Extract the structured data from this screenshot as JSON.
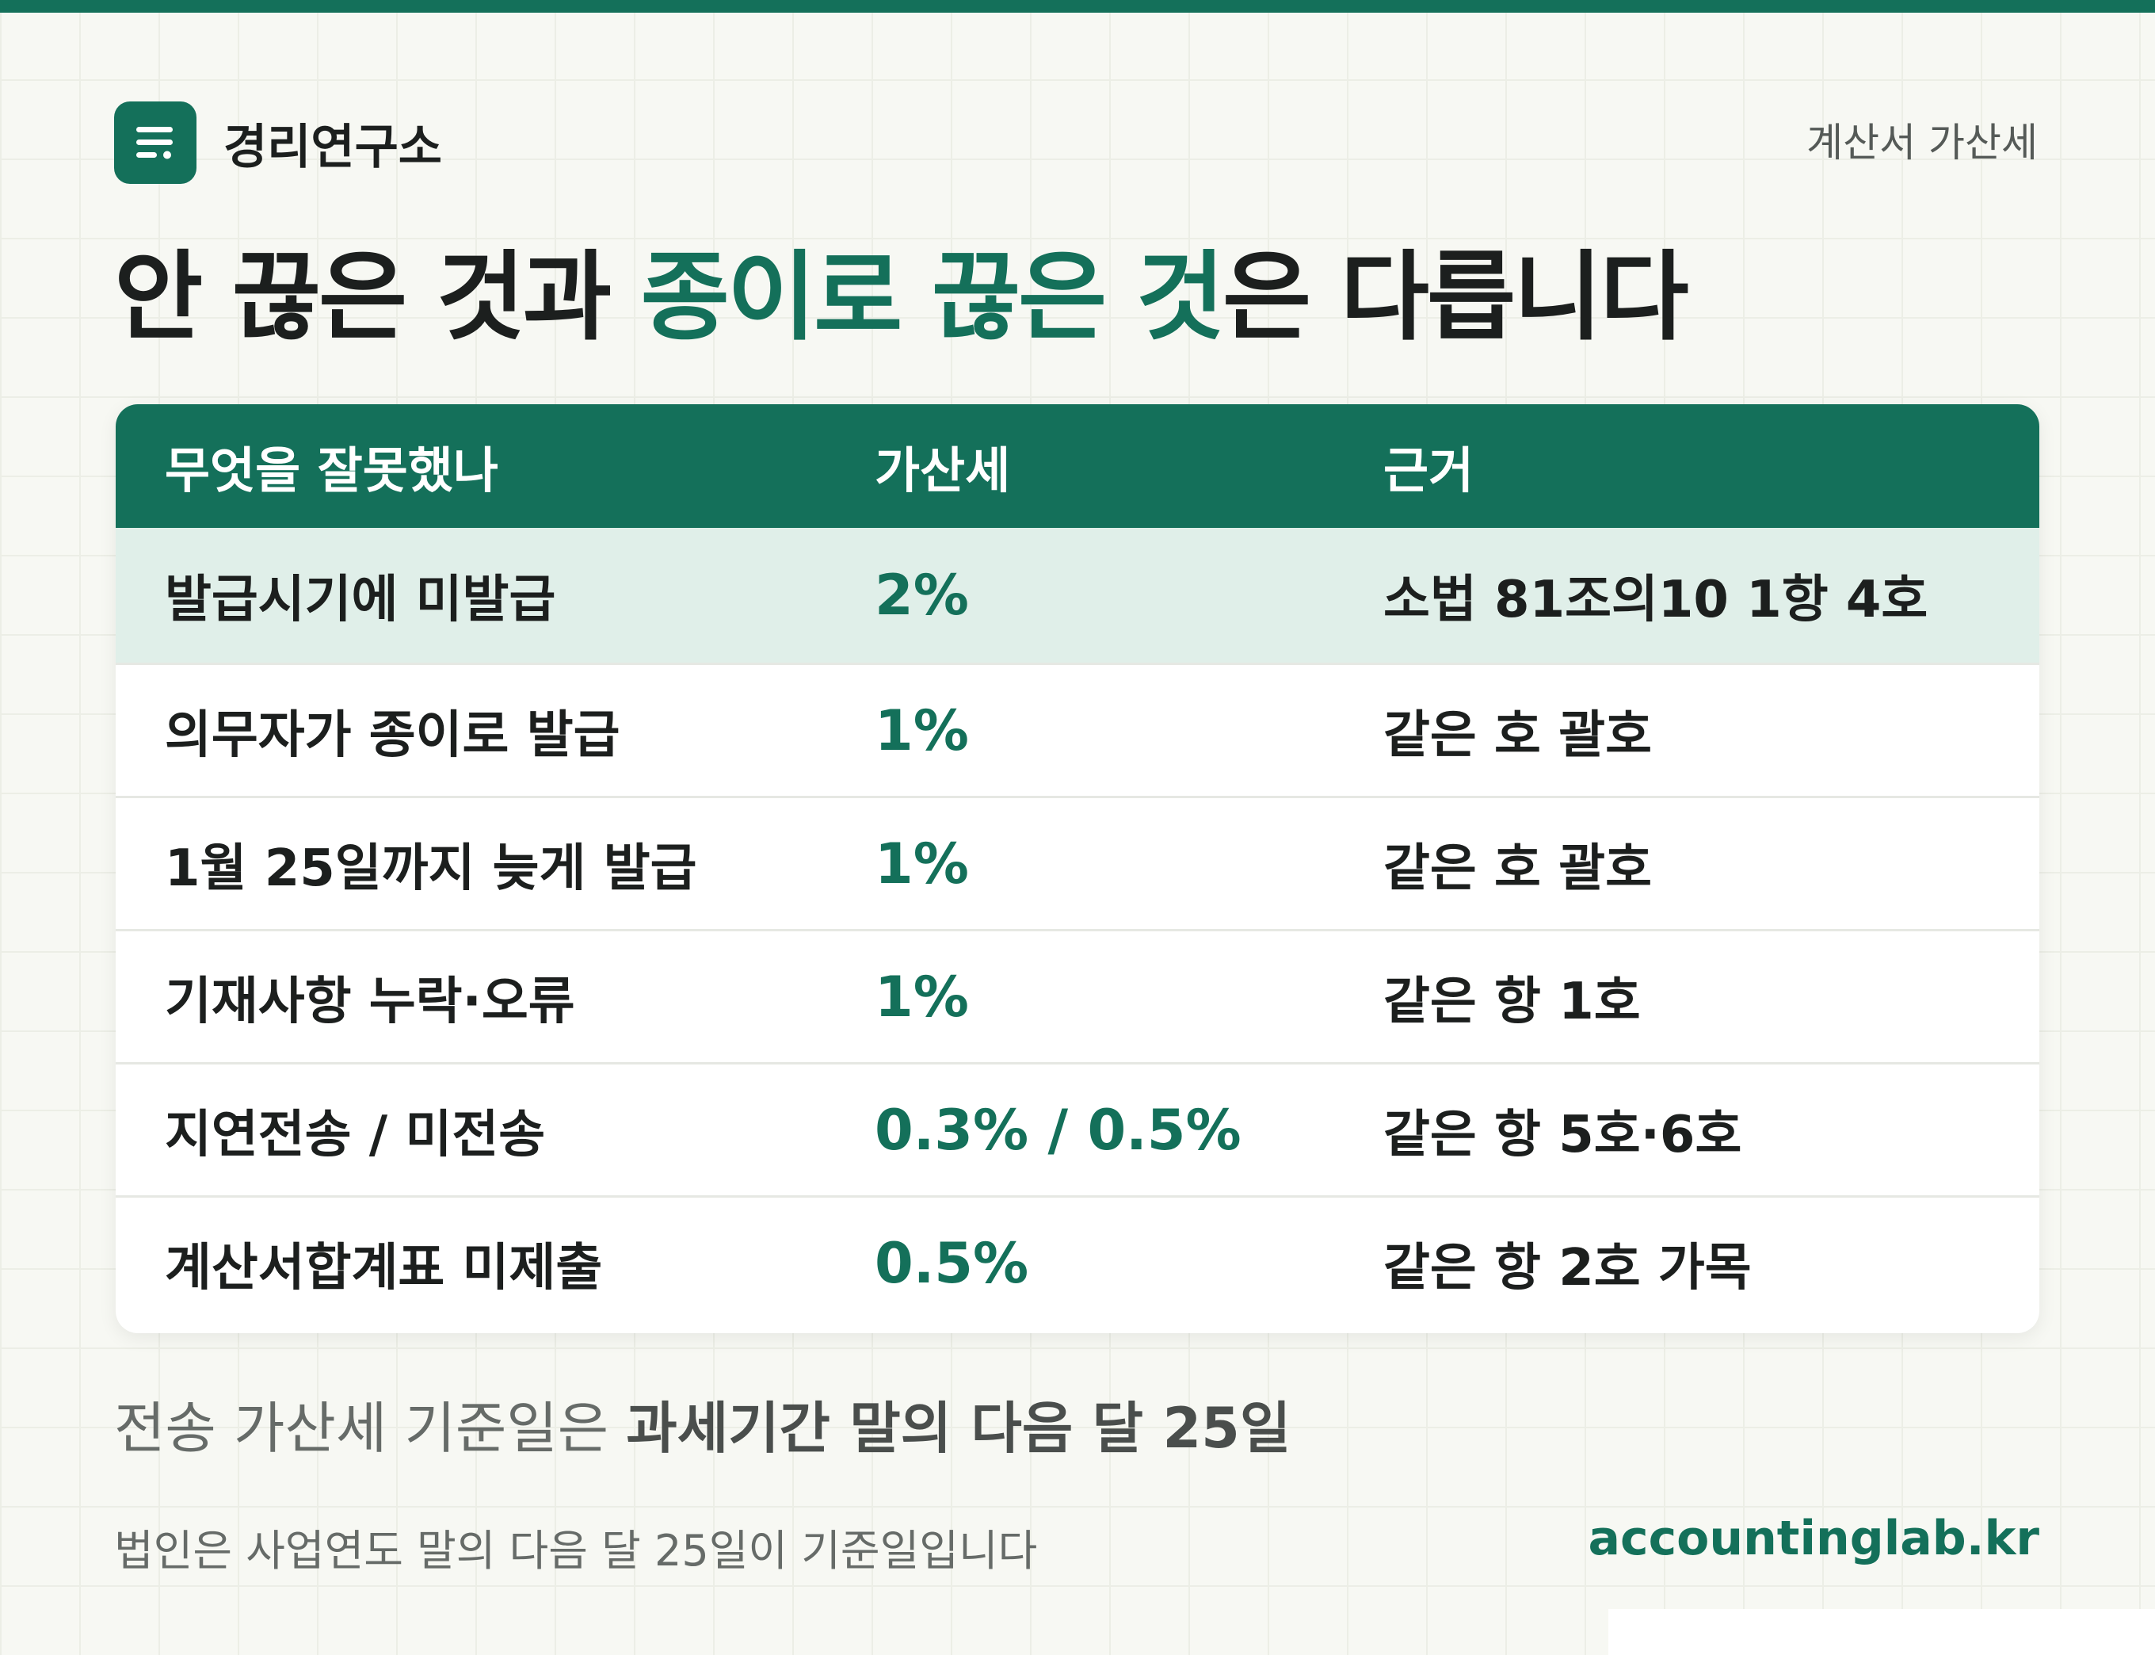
{
  "colors": {
    "accent": "#14705a",
    "background": "#f7f8f3",
    "highlight_row": "#e0efe9",
    "text": "#1c1f1e",
    "muted": "#666b68"
  },
  "brand": {
    "name": "경리연구소",
    "logo_icon": "document-lines-icon"
  },
  "doc_tag": "계산서 가산세",
  "headline": {
    "part1": "안 끊은 것과 ",
    "accent": "종이로 끊은 것",
    "part2": "은 다릅니다"
  },
  "table": {
    "headers": [
      "무엇을 잘못했나",
      "가산세",
      "근거"
    ],
    "rows": [
      {
        "issue": "발급시기에 미발급",
        "rate": "2%",
        "basis": "소법 81조의10 1항 4호"
      },
      {
        "issue": "의무자가 종이로 발급",
        "rate": "1%",
        "basis": "같은 호 괄호"
      },
      {
        "issue": "1월 25일까지 늦게 발급",
        "rate": "1%",
        "basis": "같은 호 괄호"
      },
      {
        "issue": "기재사항 누락·오류",
        "rate": "1%",
        "basis": "같은 항 1호"
      },
      {
        "issue": "지연전송 / 미전송",
        "rate": "0.3% / 0.5%",
        "basis": "같은 항 5호·6호"
      },
      {
        "issue": "계산서합계표 미제출",
        "rate": "0.5%",
        "basis": "같은 항 2호 가목"
      }
    ]
  },
  "note_main": {
    "prefix": "전송 가산세 기준일은 ",
    "strong": "과세기간 말의 다음 달 25일"
  },
  "note_sub": "법인은 사업연도 말의 다음 달 25일이 기준일입니다",
  "site": "accountinglab.kr"
}
